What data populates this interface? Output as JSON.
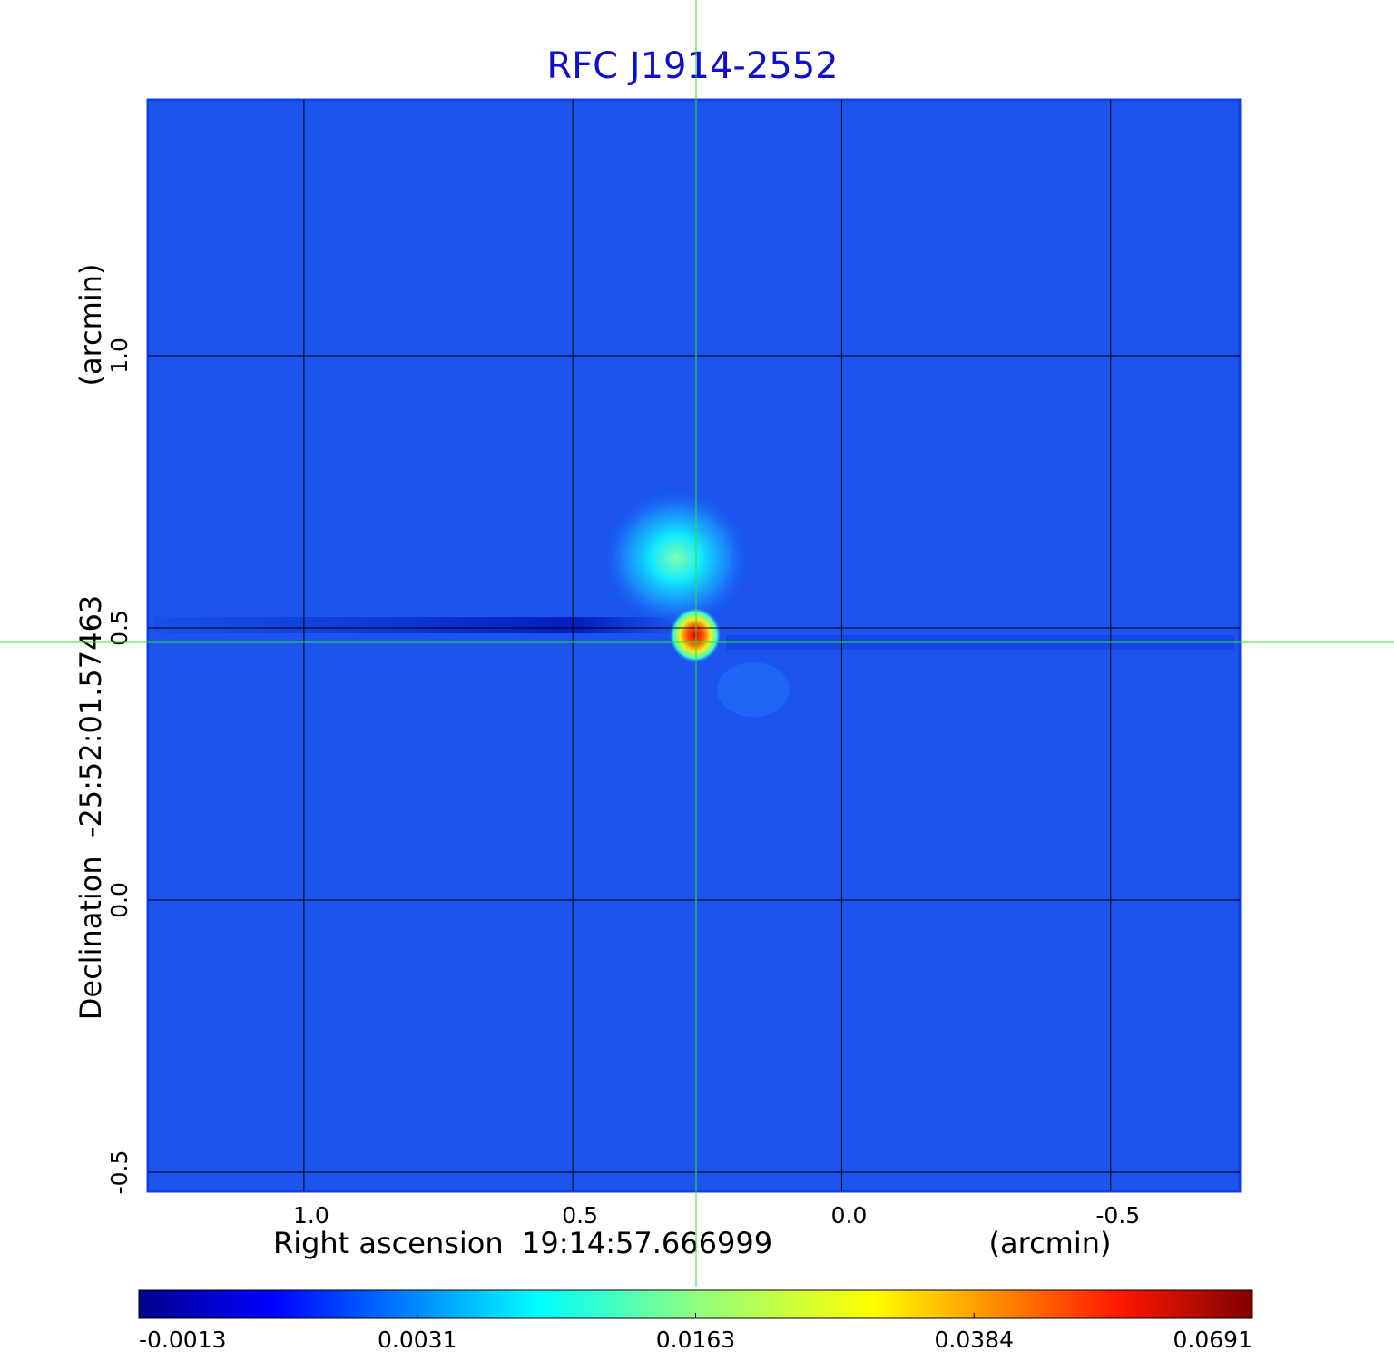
{
  "chart_data": {
    "type": "image",
    "title": "RFC J1914-2552",
    "x_label": "Right ascension  19:14:57.666999",
    "x_unit": "(arcmin)",
    "y_label": "Declination  -25:52:01.57463",
    "y_unit": "(arcmin)",
    "xlim": [
      1.29,
      -0.74
    ],
    "ylim": [
      -0.535,
      1.47
    ],
    "xticks": [
      {
        "value": 1,
        "label": "1.0"
      },
      0.5,
      {
        "value": 0,
        "label": "0.0"
      },
      -0.5
    ],
    "yticks": [
      {
        "value": 1,
        "label": "1.0"
      },
      0.5,
      {
        "value": 0,
        "label": "0.0"
      },
      -0.5
    ],
    "grid": true,
    "colorscale": "jet",
    "colorbar_ticks": [
      -0.0013,
      0.0031,
      0.0163,
      0.0384,
      0.0691
    ]
  }
}
